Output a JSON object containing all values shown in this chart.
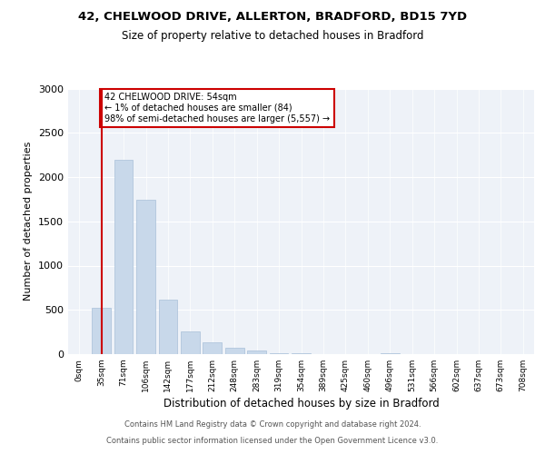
{
  "title1": "42, CHELWOOD DRIVE, ALLERTON, BRADFORD, BD15 7YD",
  "title2": "Size of property relative to detached houses in Bradford",
  "xlabel": "Distribution of detached houses by size in Bradford",
  "ylabel": "Number of detached properties",
  "bar_color": "#c8d8ea",
  "bar_edge_color": "#a8c0d8",
  "categories": [
    "0sqm",
    "35sqm",
    "71sqm",
    "106sqm",
    "142sqm",
    "177sqm",
    "212sqm",
    "248sqm",
    "283sqm",
    "319sqm",
    "354sqm",
    "389sqm",
    "425sqm",
    "460sqm",
    "496sqm",
    "531sqm",
    "566sqm",
    "602sqm",
    "637sqm",
    "673sqm",
    "708sqm"
  ],
  "values": [
    5,
    520,
    2190,
    1740,
    620,
    260,
    130,
    70,
    40,
    15,
    8,
    5,
    3,
    2,
    15,
    2,
    1,
    1,
    1,
    1,
    1
  ],
  "ylim": [
    0,
    3000
  ],
  "yticks": [
    0,
    500,
    1000,
    1500,
    2000,
    2500,
    3000
  ],
  "vline_x": 1,
  "vline_color": "#cc0000",
  "annotation_text": "42 CHELWOOD DRIVE: 54sqm\n← 1% of detached houses are smaller (84)\n98% of semi-detached houses are larger (5,557) →",
  "annotation_box_color": "#ffffff",
  "annotation_box_edge": "#cc0000",
  "footer1": "Contains HM Land Registry data © Crown copyright and database right 2024.",
  "footer2": "Contains public sector information licensed under the Open Government Licence v3.0.",
  "background_color": "#ffffff",
  "plot_bg_color": "#eef2f8"
}
